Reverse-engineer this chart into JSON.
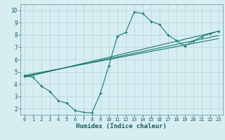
{
  "xlabel": "Humidex (Indice chaleur)",
  "bg_color": "#d6eef2",
  "grid_color": "#b8d8dc",
  "line_color": "#1a7a6e",
  "xlim": [
    -0.5,
    23.5
  ],
  "ylim": [
    1.5,
    10.5
  ],
  "xticks": [
    0,
    1,
    2,
    3,
    4,
    5,
    6,
    7,
    8,
    9,
    10,
    11,
    12,
    13,
    14,
    15,
    16,
    17,
    18,
    19,
    20,
    21,
    22,
    23
  ],
  "yticks": [
    2,
    3,
    4,
    5,
    6,
    7,
    8,
    9,
    10
  ],
  "main_series": {
    "x": [
      0,
      1,
      2,
      3,
      4,
      5,
      6,
      7,
      8,
      9,
      10,
      11,
      12,
      13,
      14,
      15,
      16,
      17,
      18,
      19,
      20,
      21,
      22,
      23
    ],
    "y": [
      4.7,
      4.55,
      3.85,
      3.4,
      2.65,
      2.45,
      1.85,
      1.7,
      1.65,
      3.25,
      5.5,
      7.9,
      8.2,
      9.85,
      9.75,
      9.1,
      8.85,
      8.0,
      7.55,
      7.1,
      7.5,
      7.85,
      8.1,
      8.3
    ]
  },
  "trend_lines": [
    {
      "x": [
        0,
        23
      ],
      "y": [
        4.55,
        8.3
      ]
    },
    {
      "x": [
        0,
        23
      ],
      "y": [
        4.62,
        7.95
      ]
    },
    {
      "x": [
        0,
        23
      ],
      "y": [
        4.7,
        7.7
      ]
    }
  ]
}
